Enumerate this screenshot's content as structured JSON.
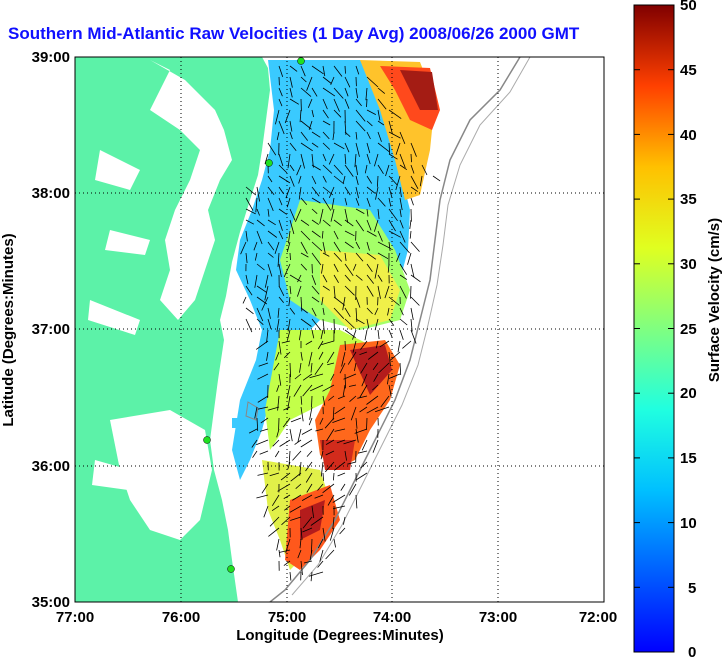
{
  "title": "Southern Mid-Atlantic Raw Velocities (1 Day Avg) 2008/06/26 2000 GMT",
  "x_axis": {
    "label": "Longitude (Degrees:Minutes)",
    "ticks": [
      "77:00",
      "76:00",
      "75:00",
      "74:00",
      "73:00",
      "72:00"
    ]
  },
  "y_axis": {
    "label": "Latitude (Degrees:Minutes)",
    "ticks": [
      "39:00",
      "38:00",
      "37:00",
      "36:00",
      "35:00"
    ]
  },
  "colorbar": {
    "label": "Surface Velocity (cm/s)",
    "ticks": [
      "50",
      "45",
      "40",
      "35",
      "30",
      "25",
      "20",
      "15",
      "10",
      "5",
      "0"
    ],
    "range": [
      0,
      50
    ]
  },
  "colors": {
    "land": "#5cf2a8",
    "water": "#ffffff",
    "title": "#1010ff",
    "grid": "#000000"
  },
  "stations": [
    "station-1",
    "station-2",
    "station-3",
    "station-4"
  ]
}
